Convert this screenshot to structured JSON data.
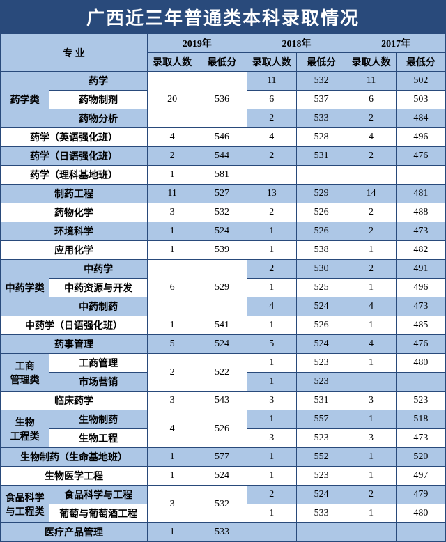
{
  "title": "广西近三年普通类本科录取情况",
  "colors": {
    "title_bg": "#294a7b",
    "title_fg": "#ffffff",
    "header_bg": "#adc7e6",
    "row_alt_bg": "#adc7e6",
    "row_bg": "#ffffff",
    "border": "#294a7b",
    "text": "#000000"
  },
  "headers": {
    "major": "专 业",
    "years": [
      "2019年",
      "2018年",
      "2017年"
    ],
    "sub": [
      "录取人数",
      "最低分"
    ]
  },
  "rows": [
    {
      "group": "药学类",
      "groupRows": 3,
      "sub": "药学",
      "y19n": "20",
      "y19nRows": 3,
      "y19s": "536",
      "y19sRows": 3,
      "y18n": "11",
      "y18s": "532",
      "y17n": "11",
      "y17s": "502",
      "alt": true
    },
    {
      "sub": "药物制剂",
      "y18n": "6",
      "y18s": "537",
      "y17n": "6",
      "y17s": "503",
      "alt": false
    },
    {
      "sub": "药物分析",
      "y18n": "2",
      "y18s": "533",
      "y17n": "2",
      "y17s": "484",
      "alt": true
    },
    {
      "full": "药学（英语强化班）",
      "y19n": "4",
      "y19s": "546",
      "y18n": "4",
      "y18s": "528",
      "y17n": "4",
      "y17s": "496",
      "alt": false
    },
    {
      "full": "药学（日语强化班）",
      "y19n": "2",
      "y19s": "544",
      "y18n": "2",
      "y18s": "531",
      "y17n": "2",
      "y17s": "476",
      "alt": true
    },
    {
      "full": "药学（理科基地班）",
      "y19n": "1",
      "y19s": "581",
      "y18n": "",
      "y18s": "",
      "y17n": "",
      "y17s": "",
      "alt": false
    },
    {
      "full": "制药工程",
      "y19n": "11",
      "y19s": "527",
      "y18n": "13",
      "y18s": "529",
      "y17n": "14",
      "y17s": "481",
      "alt": true
    },
    {
      "full": "药物化学",
      "y19n": "3",
      "y19s": "532",
      "y18n": "2",
      "y18s": "526",
      "y17n": "2",
      "y17s": "488",
      "alt": false
    },
    {
      "full": "环境科学",
      "y19n": "1",
      "y19s": "524",
      "y18n": "1",
      "y18s": "526",
      "y17n": "2",
      "y17s": "473",
      "alt": true
    },
    {
      "full": "应用化学",
      "y19n": "1",
      "y19s": "539",
      "y18n": "1",
      "y18s": "538",
      "y17n": "1",
      "y17s": "482",
      "alt": false
    },
    {
      "group": "中药学类",
      "groupRows": 3,
      "sub": "中药学",
      "y19n": "6",
      "y19nRows": 3,
      "y19s": "529",
      "y19sRows": 3,
      "y18n": "2",
      "y18s": "530",
      "y17n": "2",
      "y17s": "491",
      "alt": true
    },
    {
      "sub": "中药资源与开发",
      "y18n": "1",
      "y18s": "525",
      "y17n": "1",
      "y17s": "496",
      "alt": false
    },
    {
      "sub": "中药制药",
      "y18n": "4",
      "y18s": "524",
      "y17n": "4",
      "y17s": "473",
      "alt": true
    },
    {
      "full": "中药学（日语强化班）",
      "y19n": "1",
      "y19s": "541",
      "y18n": "1",
      "y18s": "526",
      "y17n": "1",
      "y17s": "485",
      "alt": false
    },
    {
      "full": "药事管理",
      "y19n": "5",
      "y19s": "524",
      "y18n": "5",
      "y18s": "524",
      "y17n": "4",
      "y17s": "476",
      "alt": true
    },
    {
      "group": "工商\n管理类",
      "groupRows": 2,
      "sub": "工商管理",
      "y19n": "2",
      "y19nRows": 2,
      "y19s": "522",
      "y19sRows": 2,
      "y18n": "1",
      "y18s": "523",
      "y17n": "1",
      "y17s": "480",
      "alt": false
    },
    {
      "sub": "市场营销",
      "y18n": "1",
      "y18s": "523",
      "y17n": "",
      "y17s": "",
      "alt": true
    },
    {
      "full": "临床药学",
      "y19n": "3",
      "y19s": "543",
      "y18n": "3",
      "y18s": "531",
      "y17n": "3",
      "y17s": "523",
      "alt": false
    },
    {
      "group": "生物\n工程类",
      "groupRows": 2,
      "sub": "生物制药",
      "y19n": "4",
      "y19nRows": 2,
      "y19s": "526",
      "y19sRows": 2,
      "y18n": "1",
      "y18s": "557",
      "y17n": "1",
      "y17s": "518",
      "alt": true
    },
    {
      "sub": "生物工程",
      "y18n": "3",
      "y18s": "523",
      "y17n": "3",
      "y17s": "473",
      "alt": false
    },
    {
      "full": "生物制药（生命基地班）",
      "y19n": "1",
      "y19s": "577",
      "y18n": "1",
      "y18s": "552",
      "y17n": "1",
      "y17s": "520",
      "alt": true
    },
    {
      "full": "生物医学工程",
      "y19n": "1",
      "y19s": "524",
      "y18n": "1",
      "y18s": "523",
      "y17n": "1",
      "y17s": "497",
      "alt": false
    },
    {
      "group": "食品科学\n与工程类",
      "groupRows": 2,
      "sub": "食品科学与工程",
      "y19n": "3",
      "y19nRows": 2,
      "y19s": "532",
      "y19sRows": 2,
      "y18n": "2",
      "y18s": "524",
      "y17n": "2",
      "y17s": "479",
      "alt": true
    },
    {
      "sub": "葡萄与葡萄酒工程",
      "y18n": "1",
      "y18s": "533",
      "y17n": "1",
      "y17s": "480",
      "alt": false
    },
    {
      "full": "医疗产品管理",
      "y19n": "1",
      "y19s": "533",
      "y18n": "",
      "y18s": "",
      "y17n": "",
      "y17s": "",
      "alt": true
    }
  ]
}
